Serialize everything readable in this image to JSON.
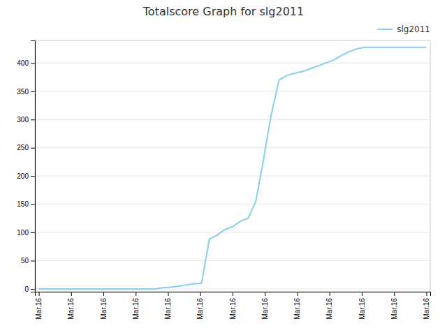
{
  "chart_data": {
    "type": "line",
    "title": "Totalscore Graph for slg2011",
    "x": [
      0,
      1,
      2,
      3,
      4,
      5,
      6,
      7,
      8,
      9,
      10,
      11,
      12,
      13,
      14,
      15,
      16,
      17,
      18,
      19,
      20,
      21,
      22,
      23,
      24,
      25,
      26,
      27,
      28,
      29,
      30,
      31,
      32,
      33,
      34,
      35,
      36,
      37,
      38,
      39,
      40,
      41,
      42,
      43,
      44,
      45,
      46,
      47,
      48,
      49,
      50
    ],
    "series": [
      {
        "name": "slg2011",
        "color": "#88ccee",
        "values": [
          0,
          0,
          0,
          0,
          0,
          0,
          0,
          0,
          0,
          0,
          0,
          0,
          0,
          0,
          0,
          0,
          2,
          3,
          5,
          7,
          9,
          10,
          88,
          95,
          105,
          110,
          120,
          125,
          155,
          230,
          310,
          370,
          378,
          382,
          385,
          390,
          395,
          400,
          405,
          413,
          420,
          425,
          428,
          428,
          428,
          428,
          428,
          428,
          428,
          428,
          428
        ]
      }
    ],
    "xlim": [
      -0.5,
      50.5
    ],
    "xticks": [
      {
        "value": 0,
        "label": "Mar.16"
      },
      {
        "value": 4.166666666666667,
        "label": "Mar.16"
      },
      {
        "value": 8.333333333333334,
        "label": "Mar.16"
      },
      {
        "value": 12.5,
        "label": "Mar.16"
      },
      {
        "value": 16.666666666666668,
        "label": "Mar.16"
      },
      {
        "value": 20.833333333333336,
        "label": "Mar.16"
      },
      {
        "value": 25,
        "label": "Mar.16"
      },
      {
        "value": 29.166666666666668,
        "label": "Mar.16"
      },
      {
        "value": 33.333333333333336,
        "label": "Mar.16"
      },
      {
        "value": 37.5,
        "label": "Mar.16"
      },
      {
        "value": 41.66666666666667,
        "label": "Mar.16"
      },
      {
        "value": 45.833333333333336,
        "label": "Mar.16"
      },
      {
        "value": 50,
        "label": "Mar.16"
      }
    ],
    "ylim": [
      -5,
      440
    ],
    "yticks": [
      0,
      50,
      100,
      150,
      200,
      250,
      300,
      350,
      400
    ],
    "grid": true,
    "legend": "upper right"
  }
}
